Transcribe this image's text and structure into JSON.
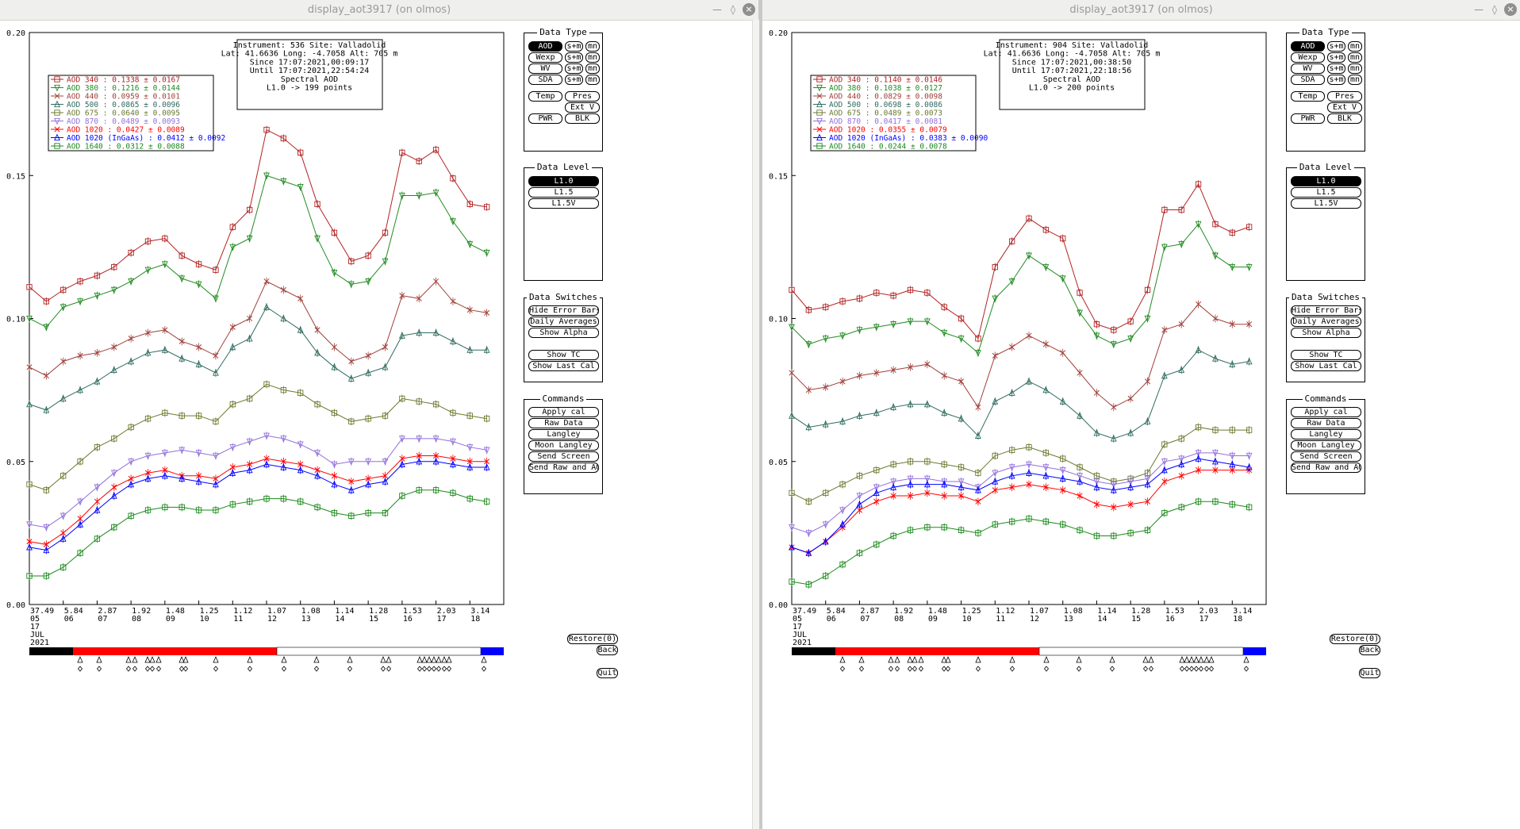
{
  "windows": [
    {
      "title": "display_aot3917 (on olmos)",
      "info": [
        "Instrument: 536 Site: Valladolid",
        "Lat: 41.6636 Long: -4.7058 Alt: 705 m",
        "Since 17:07:2021,00:09:17",
        "Until 17:07:2021,22:54:24",
        "Spectral AOD",
        "L1.0 -> 199 points"
      ],
      "legend": [
        {
          "label": "AOD 340   : 0.1338 ± 0.0167",
          "color": "#b22222",
          "marker": "square"
        },
        {
          "label": "AOD 380   : 0.1216 ± 0.0144",
          "color": "#228b22",
          "marker": "tri-down"
        },
        {
          "label": "AOD 440   : 0.0959 ± 0.0101",
          "color": "#a0403a",
          "marker": "x"
        },
        {
          "label": "AOD 500   : 0.0865 ± 0.0096",
          "color": "#2f6b5f",
          "marker": "tri-up"
        },
        {
          "label": "AOD 675   : 0.0640 ± 0.0095",
          "color": "#6b7a2f",
          "marker": "square"
        },
        {
          "label": "AOD 870   : 0.0489 ± 0.0093",
          "color": "#9370db",
          "marker": "tri-down"
        },
        {
          "label": "AOD 1020  : 0.0427 ± 0.0089",
          "color": "#ff0000",
          "marker": "x"
        },
        {
          "label": "AOD 1020  (InGaAs)  : 0.0412 ± 0.0092",
          "color": "#0000ff",
          "marker": "tri-up"
        },
        {
          "label": "AOD 1640  : 0.0312 ± 0.0088",
          "color": "#1a8a1a",
          "marker": "square"
        }
      ]
    },
    {
      "title": "display_aot3917 (on olmos)",
      "info": [
        "Instrument: 904 Site: Valladolid",
        "Lat: 41.6636 Long: -4.7058 Alt: 705 m",
        "Since 17:07:2021,00:38:50",
        "Until 17:07:2021,22:18:56",
        "Spectral AOD",
        "L1.0 -> 200 points"
      ],
      "legend": [
        {
          "label": "AOD 340   : 0.1140 ± 0.0146",
          "color": "#b22222",
          "marker": "square"
        },
        {
          "label": "AOD 380   : 0.1038 ± 0.0127",
          "color": "#228b22",
          "marker": "tri-down"
        },
        {
          "label": "AOD 440   : 0.0829 ± 0.0098",
          "color": "#a0403a",
          "marker": "x"
        },
        {
          "label": "AOD 500   : 0.0698 ± 0.0086",
          "color": "#2f6b5f",
          "marker": "tri-up"
        },
        {
          "label": "AOD 675   : 0.0489 ± 0.0073",
          "color": "#6b7a2f",
          "marker": "square"
        },
        {
          "label": "AOD 870   : 0.0417 ± 0.0081",
          "color": "#9370db",
          "marker": "tri-down"
        },
        {
          "label": "AOD 1020  : 0.0355 ± 0.0079",
          "color": "#ff0000",
          "marker": "x"
        },
        {
          "label": "AOD 1020  (InGaAs)  : 0.0383 ± 0.0090",
          "color": "#0000ff",
          "marker": "tri-up"
        },
        {
          "label": "AOD 1640  : 0.0244 ± 0.0078",
          "color": "#1a8a1a",
          "marker": "square"
        }
      ]
    }
  ],
  "axes": {
    "y_ticks": [
      "0.00",
      "0.05",
      "0.10",
      "0.15",
      "0.20"
    ],
    "x_top": [
      "37.49",
      "5.84",
      "2.87",
      "1.92",
      "1.48",
      "1.25",
      "1.12",
      "1.07",
      "1.08",
      "1.14",
      "1.28",
      "1.53",
      "2.03",
      "3.14"
    ],
    "x_hours": [
      "05",
      "06",
      "07",
      "08",
      "09",
      "10",
      "11",
      "12",
      "13",
      "14",
      "15",
      "16",
      "17",
      "18"
    ],
    "date_day": "17",
    "date_month": "JUL",
    "date_year": "2021"
  },
  "panels": {
    "data_type": {
      "title": "Data Type",
      "rows": [
        {
          "main": "AOD",
          "selected": true
        },
        {
          "main": "Wexp",
          "selected": false
        },
        {
          "main": "WV",
          "selected": false
        },
        {
          "main": "SDA",
          "selected": false
        }
      ],
      "sm": "s+m",
      "mn": "mn",
      "temp": "Temp",
      "pres": "Pres",
      "extv": "Ext V",
      "pwr": "PWR",
      "blk": "BLK"
    },
    "data_level": {
      "title": "Data Level",
      "items": [
        "L1.0",
        "L1.5",
        "L1.5V"
      ],
      "selected": "L1.0"
    },
    "data_switches": {
      "title": "Data Switches",
      "items": [
        "Hide Error Bars",
        "Daily Averages",
        "Show Alpha",
        "Show TC",
        "Show Last Cal"
      ]
    },
    "commands": {
      "title": "Commands",
      "items": [
        "Apply cal",
        "Raw Data",
        "Langley",
        "Moon Langley",
        "Send Screen",
        "Send Raw and AOD"
      ]
    }
  },
  "bottom": {
    "restore": "Restore(0)",
    "back": "Back",
    "quit": "Quit"
  },
  "timeline_colors": {
    "night": "#000000",
    "am": "#ff0000",
    "day": "#ffffff",
    "pm": "#0000ff"
  },
  "chart_data": [
    {
      "type": "line",
      "title": "Spectral AOD",
      "xlabel": "",
      "ylabel": "",
      "ylim": [
        0,
        0.2
      ],
      "x_hours_range": [
        5,
        19
      ],
      "grid": false,
      "legend_position": "top-left",
      "series_hour": [
        5,
        5.5,
        6,
        6.5,
        7,
        7.5,
        8,
        8.5,
        9,
        9.5,
        10,
        10.5,
        11,
        11.5,
        12,
        12.5,
        13,
        13.5,
        14,
        14.5,
        15,
        15.5,
        16,
        16.5,
        17,
        17.5,
        18,
        18.5
      ],
      "series": [
        {
          "name": "AOD 340",
          "color": "#b22222",
          "marker": "square",
          "values": [
            0.111,
            0.106,
            0.11,
            0.113,
            0.115,
            0.118,
            0.123,
            0.127,
            0.128,
            0.122,
            0.119,
            0.117,
            0.132,
            0.138,
            0.166,
            0.163,
            0.158,
            0.14,
            0.13,
            0.12,
            0.122,
            0.13,
            0.158,
            0.155,
            0.159,
            0.149,
            0.14,
            0.139
          ]
        },
        {
          "name": "AOD 380",
          "color": "#228b22",
          "marker": "tri-down",
          "values": [
            0.1,
            0.097,
            0.104,
            0.106,
            0.108,
            0.11,
            0.113,
            0.117,
            0.119,
            0.114,
            0.112,
            0.107,
            0.125,
            0.128,
            0.15,
            0.148,
            0.146,
            0.128,
            0.116,
            0.112,
            0.113,
            0.12,
            0.143,
            0.143,
            0.144,
            0.134,
            0.126,
            0.123
          ]
        },
        {
          "name": "AOD 440",
          "color": "#a0403a",
          "marker": "x",
          "values": [
            0.083,
            0.08,
            0.085,
            0.087,
            0.088,
            0.09,
            0.093,
            0.095,
            0.096,
            0.092,
            0.09,
            0.087,
            0.097,
            0.1,
            0.113,
            0.11,
            0.107,
            0.096,
            0.09,
            0.085,
            0.087,
            0.09,
            0.108,
            0.107,
            0.113,
            0.106,
            0.103,
            0.102
          ]
        },
        {
          "name": "AOD 500",
          "color": "#2f6b5f",
          "marker": "tri-up",
          "values": [
            0.07,
            0.068,
            0.072,
            0.075,
            0.078,
            0.082,
            0.085,
            0.088,
            0.089,
            0.086,
            0.084,
            0.081,
            0.09,
            0.093,
            0.104,
            0.1,
            0.096,
            0.088,
            0.083,
            0.079,
            0.081,
            0.083,
            0.094,
            0.095,
            0.095,
            0.092,
            0.089,
            0.089
          ]
        },
        {
          "name": "AOD 675",
          "color": "#6b7a2f",
          "marker": "square",
          "values": [
            0.042,
            0.04,
            0.045,
            0.05,
            0.055,
            0.058,
            0.062,
            0.065,
            0.067,
            0.066,
            0.066,
            0.064,
            0.07,
            0.072,
            0.077,
            0.075,
            0.074,
            0.07,
            0.067,
            0.064,
            0.065,
            0.066,
            0.072,
            0.071,
            0.07,
            0.067,
            0.066,
            0.065
          ]
        },
        {
          "name": "AOD 870",
          "color": "#9370db",
          "marker": "tri-down",
          "values": [
            0.028,
            0.027,
            0.031,
            0.036,
            0.041,
            0.046,
            0.05,
            0.052,
            0.053,
            0.054,
            0.053,
            0.052,
            0.055,
            0.057,
            0.059,
            0.058,
            0.056,
            0.053,
            0.049,
            0.05,
            0.05,
            0.05,
            0.058,
            0.058,
            0.058,
            0.057,
            0.055,
            0.054
          ]
        },
        {
          "name": "AOD 1020",
          "color": "#ff0000",
          "marker": "x",
          "values": [
            0.022,
            0.021,
            0.025,
            0.03,
            0.036,
            0.041,
            0.044,
            0.046,
            0.047,
            0.045,
            0.045,
            0.044,
            0.048,
            0.049,
            0.051,
            0.05,
            0.049,
            0.047,
            0.045,
            0.043,
            0.044,
            0.045,
            0.051,
            0.052,
            0.052,
            0.051,
            0.05,
            0.05
          ]
        },
        {
          "name": "AOD 1020 (InGaAs)",
          "color": "#0000ff",
          "marker": "tri-up",
          "values": [
            0.02,
            0.019,
            0.023,
            0.028,
            0.033,
            0.038,
            0.042,
            0.044,
            0.045,
            0.044,
            0.043,
            0.042,
            0.046,
            0.047,
            0.049,
            0.048,
            0.047,
            0.045,
            0.042,
            0.04,
            0.042,
            0.043,
            0.049,
            0.05,
            0.05,
            0.049,
            0.048,
            0.048
          ]
        },
        {
          "name": "AOD 1640",
          "color": "#1a8a1a",
          "marker": "square",
          "values": [
            0.01,
            0.01,
            0.013,
            0.018,
            0.023,
            0.027,
            0.031,
            0.033,
            0.034,
            0.034,
            0.033,
            0.033,
            0.035,
            0.036,
            0.037,
            0.037,
            0.036,
            0.034,
            0.032,
            0.031,
            0.032,
            0.032,
            0.038,
            0.04,
            0.04,
            0.039,
            0.037,
            0.036
          ]
        }
      ]
    },
    {
      "type": "line",
      "title": "Spectral AOD",
      "xlabel": "",
      "ylabel": "",
      "ylim": [
        0,
        0.2
      ],
      "x_hours_range": [
        5,
        19
      ],
      "grid": false,
      "legend_position": "top-left",
      "series_hour": [
        5,
        5.5,
        6,
        6.5,
        7,
        7.5,
        8,
        8.5,
        9,
        9.5,
        10,
        10.5,
        11,
        11.5,
        12,
        12.5,
        13,
        13.5,
        14,
        14.5,
        15,
        15.5,
        16,
        16.5,
        17,
        17.5,
        18,
        18.5
      ],
      "series": [
        {
          "name": "AOD 340",
          "color": "#b22222",
          "marker": "square",
          "values": [
            0.11,
            0.103,
            0.104,
            0.106,
            0.107,
            0.109,
            0.108,
            0.11,
            0.109,
            0.104,
            0.1,
            0.093,
            0.118,
            0.127,
            0.135,
            0.131,
            0.128,
            0.109,
            0.098,
            0.096,
            0.099,
            0.11,
            0.138,
            0.138,
            0.147,
            0.133,
            0.13,
            0.132
          ]
        },
        {
          "name": "AOD 380",
          "color": "#228b22",
          "marker": "tri-down",
          "values": [
            0.097,
            0.091,
            0.093,
            0.094,
            0.096,
            0.097,
            0.098,
            0.099,
            0.099,
            0.095,
            0.093,
            0.088,
            0.107,
            0.113,
            0.122,
            0.118,
            0.114,
            0.102,
            0.094,
            0.091,
            0.093,
            0.1,
            0.125,
            0.126,
            0.133,
            0.122,
            0.118,
            0.118
          ]
        },
        {
          "name": "AOD 440",
          "color": "#a0403a",
          "marker": "x",
          "values": [
            0.081,
            0.075,
            0.076,
            0.078,
            0.08,
            0.081,
            0.082,
            0.083,
            0.084,
            0.08,
            0.078,
            0.069,
            0.087,
            0.09,
            0.094,
            0.091,
            0.088,
            0.081,
            0.074,
            0.069,
            0.072,
            0.078,
            0.096,
            0.098,
            0.105,
            0.1,
            0.098,
            0.098
          ]
        },
        {
          "name": "AOD 500",
          "color": "#2f6b5f",
          "marker": "tri-up",
          "values": [
            0.066,
            0.062,
            0.063,
            0.064,
            0.066,
            0.067,
            0.069,
            0.07,
            0.07,
            0.067,
            0.065,
            0.059,
            0.071,
            0.074,
            0.078,
            0.075,
            0.071,
            0.066,
            0.06,
            0.058,
            0.06,
            0.064,
            0.08,
            0.082,
            0.089,
            0.086,
            0.084,
            0.085
          ]
        },
        {
          "name": "AOD 675",
          "color": "#6b7a2f",
          "marker": "square",
          "values": [
            0.039,
            0.036,
            0.039,
            0.042,
            0.045,
            0.047,
            0.049,
            0.05,
            0.05,
            0.049,
            0.048,
            0.046,
            0.052,
            0.054,
            0.055,
            0.053,
            0.051,
            0.048,
            0.045,
            0.043,
            0.044,
            0.046,
            0.056,
            0.058,
            0.062,
            0.061,
            0.061,
            0.061
          ]
        },
        {
          "name": "AOD 870",
          "color": "#9370db",
          "marker": "tri-down",
          "values": [
            0.027,
            0.025,
            0.028,
            0.033,
            0.038,
            0.041,
            0.043,
            0.044,
            0.044,
            0.043,
            0.043,
            0.041,
            0.046,
            0.048,
            0.049,
            0.048,
            0.047,
            0.045,
            0.043,
            0.042,
            0.043,
            0.044,
            0.05,
            0.051,
            0.053,
            0.053,
            0.052,
            0.052
          ]
        },
        {
          "name": "AOD 1020",
          "color": "#ff0000",
          "marker": "x",
          "values": [
            0.02,
            0.018,
            0.022,
            0.027,
            0.033,
            0.036,
            0.038,
            0.038,
            0.039,
            0.038,
            0.038,
            0.036,
            0.04,
            0.041,
            0.042,
            0.041,
            0.04,
            0.038,
            0.035,
            0.034,
            0.035,
            0.036,
            0.043,
            0.045,
            0.047,
            0.047,
            0.047,
            0.047
          ]
        },
        {
          "name": "AOD 1020 (InGaAs)",
          "color": "#0000ff",
          "marker": "tri-up",
          "values": [
            0.02,
            0.018,
            0.022,
            0.028,
            0.035,
            0.039,
            0.041,
            0.042,
            0.042,
            0.042,
            0.041,
            0.04,
            0.043,
            0.045,
            0.046,
            0.045,
            0.044,
            0.043,
            0.041,
            0.04,
            0.041,
            0.042,
            0.047,
            0.049,
            0.051,
            0.05,
            0.049,
            0.048
          ]
        },
        {
          "name": "AOD 1640",
          "color": "#1a8a1a",
          "marker": "square",
          "values": [
            0.008,
            0.007,
            0.01,
            0.014,
            0.018,
            0.021,
            0.024,
            0.026,
            0.027,
            0.027,
            0.026,
            0.025,
            0.028,
            0.029,
            0.03,
            0.029,
            0.028,
            0.026,
            0.024,
            0.024,
            0.025,
            0.026,
            0.032,
            0.034,
            0.036,
            0.036,
            0.035,
            0.034
          ]
        }
      ]
    }
  ]
}
